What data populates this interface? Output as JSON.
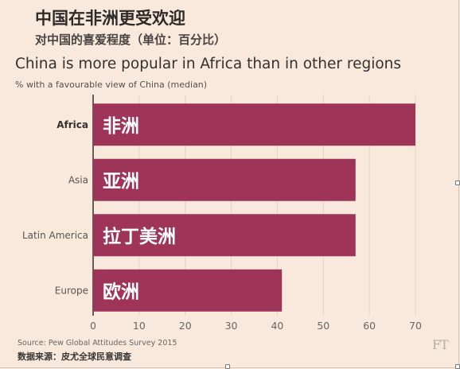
{
  "header": {
    "title_cn": "中国在非洲更受欢迎",
    "subtitle_cn": "对中国的喜爱程度（单位：百分比）",
    "title_en": "China is more popular in Africa than in other regions",
    "subtitle_en": "% with a favourable view of China (median)"
  },
  "footer": {
    "source_en": "Source: Pew Global Attitudes Survey 2015",
    "source_cn": "数据来源：皮尤全球民意调查",
    "logo": "FT"
  },
  "colors": {
    "background": "#f8e9dc",
    "bar": "#9e3559",
    "gridline": "#e3d2c4",
    "axis": "#33302e"
  },
  "chart_data": {
    "type": "bar",
    "orientation": "horizontal",
    "title": "China is more popular in Africa than in other regions",
    "subtitle": "% with a favourable view of China (median)",
    "categories": [
      "Africa",
      "Asia",
      "Latin America",
      "Europe"
    ],
    "bar_labels": [
      "非洲",
      "亚洲",
      "拉丁美洲",
      "欧洲"
    ],
    "values": [
      70,
      57,
      57,
      41
    ],
    "highlight": "Africa",
    "xlim": [
      0,
      70
    ],
    "xticks": [
      "0",
      "10",
      "20",
      "30",
      "40",
      "50",
      "60",
      "70"
    ],
    "xlabel": "",
    "ylabel": "",
    "grid": true,
    "legend": "none"
  }
}
